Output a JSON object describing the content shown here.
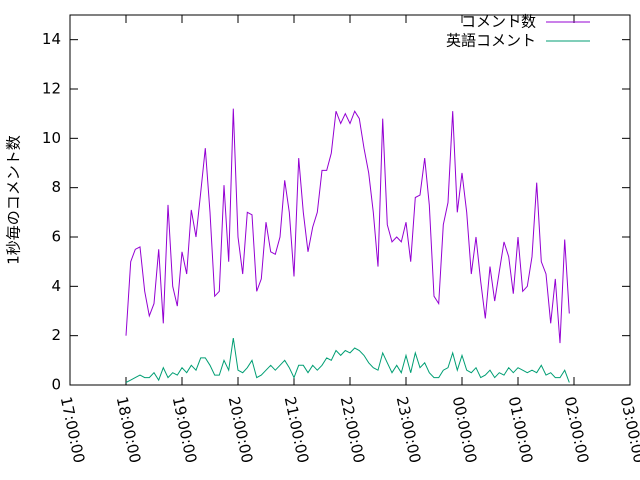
{
  "chart_data": {
    "type": "line",
    "ylabel": "1秒毎のコメント数",
    "xlim": [
      "17:00:00",
      "03:00:00"
    ],
    "xticks": [
      "17:00:00",
      "18:00:00",
      "19:00:00",
      "20:00:00",
      "21:00:00",
      "22:00:00",
      "23:00:00",
      "00:00:00",
      "01:00:00",
      "02:00:00",
      "03:00:00"
    ],
    "ylim": [
      0,
      15
    ],
    "yticks": [
      0,
      2,
      4,
      6,
      8,
      10,
      12,
      14
    ],
    "legend": "top-right",
    "x": [
      "18:00:00",
      "18:05:00",
      "18:10:00",
      "18:15:00",
      "18:20:00",
      "18:25:00",
      "18:30:00",
      "18:35:00",
      "18:40:00",
      "18:45:00",
      "18:50:00",
      "18:55:00",
      "19:00:00",
      "19:05:00",
      "19:10:00",
      "19:15:00",
      "19:20:00",
      "19:25:00",
      "19:30:00",
      "19:35:00",
      "19:40:00",
      "19:45:00",
      "19:50:00",
      "19:55:00",
      "20:00:00",
      "20:05:00",
      "20:10:00",
      "20:15:00",
      "20:20:00",
      "20:25:00",
      "20:30:00",
      "20:35:00",
      "20:40:00",
      "20:45:00",
      "20:50:00",
      "20:55:00",
      "21:00:00",
      "21:05:00",
      "21:10:00",
      "21:15:00",
      "21:20:00",
      "21:25:00",
      "21:30:00",
      "21:35:00",
      "21:40:00",
      "21:45:00",
      "21:50:00",
      "21:55:00",
      "22:00:00",
      "22:05:00",
      "22:10:00",
      "22:15:00",
      "22:20:00",
      "22:25:00",
      "22:30:00",
      "22:35:00",
      "22:40:00",
      "22:45:00",
      "22:50:00",
      "22:55:00",
      "23:00:00",
      "23:05:00",
      "23:10:00",
      "23:15:00",
      "23:20:00",
      "23:25:00",
      "23:30:00",
      "23:35:00",
      "23:40:00",
      "23:45:00",
      "23:50:00",
      "23:55:00",
      "00:00:00",
      "00:05:00",
      "00:10:00",
      "00:15:00",
      "00:20:00",
      "00:25:00",
      "00:30:00",
      "00:35:00",
      "00:40:00",
      "00:45:00",
      "00:50:00",
      "00:55:00",
      "01:00:00",
      "01:05:00",
      "01:10:00",
      "01:15:00",
      "01:20:00",
      "01:25:00",
      "01:30:00",
      "01:35:00",
      "01:40:00",
      "01:45:00",
      "01:50:00",
      "01:55:00"
    ],
    "series": [
      {
        "name": "コメント数",
        "color": "#9400d3",
        "values": [
          2.0,
          5.0,
          5.5,
          5.6,
          3.8,
          2.8,
          3.3,
          5.5,
          2.5,
          7.3,
          4.0,
          3.2,
          5.4,
          4.5,
          7.1,
          6.0,
          7.8,
          9.6,
          7.0,
          3.6,
          3.8,
          8.1,
          5.0,
          11.2,
          6.0,
          4.5,
          7.0,
          6.9,
          3.8,
          4.3,
          6.6,
          5.4,
          5.3,
          6.0,
          8.3,
          7.0,
          4.4,
          9.2,
          7.0,
          5.4,
          6.4,
          7.0,
          8.7,
          8.7,
          9.4,
          11.1,
          10.6,
          11.0,
          10.6,
          11.1,
          10.8,
          9.6,
          8.6,
          7.0,
          4.8,
          10.8,
          6.5,
          5.8,
          6.0,
          5.8,
          6.6,
          5.0,
          7.6,
          7.7,
          9.2,
          7.3,
          3.6,
          3.3,
          6.5,
          7.4,
          11.1,
          7.0,
          8.6,
          7.0,
          4.5,
          6.0,
          4.2,
          2.7,
          4.8,
          3.4,
          4.6,
          5.8,
          5.2,
          3.7,
          6.0,
          3.8,
          4.0,
          5.2,
          8.2,
          5.0,
          4.5,
          2.5,
          4.3,
          1.7,
          5.9,
          2.9
        ]
      },
      {
        "name": "英語コメント",
        "color": "#009e73",
        "values": [
          0.1,
          0.2,
          0.3,
          0.4,
          0.3,
          0.3,
          0.5,
          0.2,
          0.7,
          0.3,
          0.5,
          0.4,
          0.7,
          0.5,
          0.8,
          0.6,
          1.1,
          1.1,
          0.8,
          0.4,
          0.4,
          1.0,
          0.6,
          1.9,
          0.6,
          0.5,
          0.7,
          1.0,
          0.3,
          0.4,
          0.6,
          0.8,
          0.6,
          0.8,
          1.0,
          0.7,
          0.3,
          0.8,
          0.8,
          0.5,
          0.8,
          0.6,
          0.8,
          1.1,
          1.0,
          1.4,
          1.2,
          1.4,
          1.3,
          1.5,
          1.4,
          1.2,
          0.9,
          0.7,
          0.6,
          1.3,
          0.9,
          0.5,
          0.8,
          0.5,
          1.2,
          0.5,
          1.3,
          0.7,
          0.9,
          0.5,
          0.3,
          0.3,
          0.6,
          0.7,
          1.3,
          0.6,
          1.2,
          0.6,
          0.5,
          0.7,
          0.3,
          0.4,
          0.6,
          0.3,
          0.5,
          0.4,
          0.7,
          0.5,
          0.7,
          0.6,
          0.5,
          0.6,
          0.5,
          0.8,
          0.4,
          0.5,
          0.3,
          0.3,
          0.6,
          0.1
        ]
      }
    ]
  }
}
